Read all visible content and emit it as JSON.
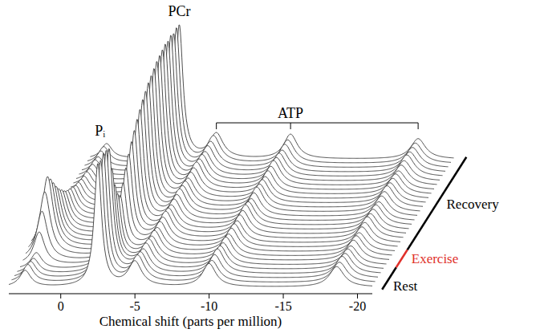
{
  "chart_data": {
    "type": "waterfall",
    "x_label": "Chemical shift (parts per million)",
    "xlim": [
      3.5,
      -21
    ],
    "xticks": [
      0,
      -5,
      -10,
      -15,
      -20
    ],
    "ylim": [
      0,
      100
    ],
    "tick_labels": "x",
    "grid": false,
    "shifts": [
      2.4,
      -2.5,
      -5.0,
      -10.0,
      -18.6
    ],
    "peak_labels": [
      {
        "label": "Pᵢ",
        "peaks": [
          0
        ]
      },
      {
        "label": "PCr",
        "peaks": [
          1
        ]
      },
      {
        "label": "ATP",
        "peaks": [
          2,
          3,
          4
        ]
      }
    ],
    "series": [
      {
        "values": [
          12,
          90,
          18,
          17,
          15
        ]
      },
      {
        "values": [
          13,
          89,
          19,
          16,
          15
        ]
      },
      {
        "values": [
          12,
          91,
          18,
          17,
          16
        ]
      },
      {
        "values": [
          11,
          90,
          17,
          18,
          15
        ]
      },
      {
        "values": [
          12,
          88,
          18,
          17,
          15
        ]
      },
      {
        "values": [
          24,
          70,
          18,
          16,
          14
        ]
      },
      {
        "values": [
          36,
          55,
          17,
          17,
          15
        ]
      },
      {
        "values": [
          47,
          45,
          18,
          16,
          15
        ]
      },
      {
        "values": [
          55,
          40,
          17,
          17,
          14
        ]
      },
      {
        "values": [
          50,
          46,
          18,
          17,
          15
        ]
      },
      {
        "values": [
          44,
          54,
          18,
          16,
          15
        ]
      },
      {
        "values": [
          38,
          61,
          19,
          17,
          16
        ]
      },
      {
        "values": [
          33,
          67,
          18,
          17,
          15
        ]
      },
      {
        "values": [
          29,
          72,
          17,
          18,
          15
        ]
      },
      {
        "values": [
          25,
          77,
          18,
          17,
          15
        ]
      },
      {
        "values": [
          22,
          81,
          18,
          16,
          14
        ]
      },
      {
        "values": [
          20,
          85,
          19,
          17,
          15
        ]
      },
      {
        "values": [
          18,
          88,
          18,
          18,
          15
        ]
      },
      {
        "values": [
          16,
          91,
          18,
          17,
          16
        ]
      },
      {
        "values": [
          15,
          93,
          17,
          17,
          15
        ]
      },
      {
        "values": [
          14,
          95,
          18,
          16,
          15
        ]
      },
      {
        "values": [
          13,
          97,
          18,
          17,
          15
        ]
      },
      {
        "values": [
          13,
          98,
          19,
          17,
          14
        ]
      },
      {
        "values": [
          12,
          99,
          18,
          18,
          15
        ]
      },
      {
        "values": [
          12,
          100,
          18,
          17,
          15
        ]
      },
      {
        "values": [
          12,
          99,
          17,
          17,
          16
        ]
      },
      {
        "values": [
          11,
          100,
          18,
          16,
          15
        ]
      },
      {
        "values": [
          12,
          98,
          18,
          17,
          15
        ]
      },
      {
        "values": [
          12,
          99,
          19,
          17,
          15
        ]
      },
      {
        "values": [
          11,
          98,
          18,
          18,
          15
        ]
      }
    ],
    "phases": [
      {
        "label": "Rest",
        "first": 0,
        "last": 4,
        "color": "#000000"
      },
      {
        "label": "Exercise",
        "first": 5,
        "last": 8,
        "color": "#e0302a"
      },
      {
        "label": "Recovery",
        "first": 9,
        "last": 29,
        "color": "#000000"
      }
    ]
  }
}
